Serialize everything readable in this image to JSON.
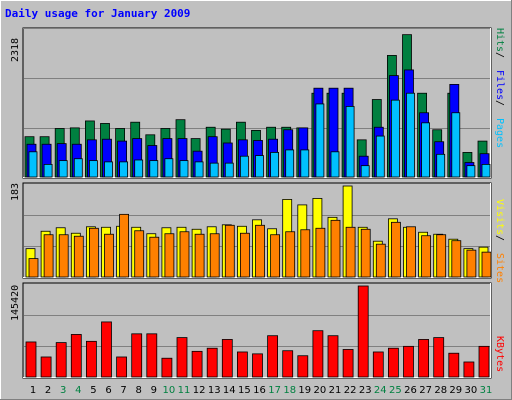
{
  "chart_data": [
    {
      "type": "bar",
      "title": "Daily usage for January 2009",
      "ymax_label": "2318",
      "legend": [
        "Pages",
        "Files",
        "Hits"
      ],
      "colors": {
        "hits": "#008040",
        "files": "#0000ff",
        "pages": "#00c0ff"
      },
      "categories": [
        "1",
        "2",
        "3",
        "4",
        "5",
        "6",
        "7",
        "8",
        "9",
        "10",
        "11",
        "12",
        "13",
        "14",
        "15",
        "16",
        "17",
        "18",
        "19",
        "20",
        "21",
        "22",
        "23",
        "24",
        "25",
        "26",
        "27",
        "28",
        "29",
        "30",
        "31"
      ],
      "weekend_days": [
        "3",
        "4",
        "10",
        "11",
        "17",
        "18",
        "24",
        "25",
        "31"
      ],
      "ylim": [
        0,
        2318
      ],
      "series": [
        {
          "name": "Hits",
          "values": [
            640,
            640,
            770,
            780,
            890,
            850,
            770,
            870,
            670,
            770,
            910,
            610,
            790,
            760,
            870,
            740,
            790,
            790,
            780,
            1330,
            1330,
            1330,
            590,
            1230,
            1930,
            2260,
            1330,
            750,
            1330,
            390,
            570
          ]
        },
        {
          "name": "Files",
          "values": [
            520,
            520,
            530,
            520,
            590,
            600,
            570,
            610,
            500,
            610,
            610,
            410,
            640,
            540,
            590,
            580,
            600,
            750,
            780,
            1410,
            1410,
            1410,
            330,
            790,
            1610,
            1700,
            1020,
            560,
            1470,
            230,
            370
          ]
        },
        {
          "name": "Pages",
          "values": [
            400,
            200,
            260,
            290,
            260,
            240,
            240,
            270,
            260,
            290,
            260,
            240,
            220,
            220,
            330,
            340,
            390,
            430,
            430,
            1160,
            400,
            1120,
            180,
            650,
            1220,
            1330,
            860,
            360,
            1020,
            180,
            200
          ]
        }
      ]
    },
    {
      "type": "bar",
      "ymax_label": "183",
      "legend": [
        "Sites",
        "Visits"
      ],
      "colors": {
        "visits": "#ffff00",
        "sites": "#ff8000"
      },
      "categories": [
        "1",
        "2",
        "3",
        "4",
        "5",
        "6",
        "7",
        "8",
        "9",
        "10",
        "11",
        "12",
        "13",
        "14",
        "15",
        "16",
        "17",
        "18",
        "19",
        "20",
        "21",
        "22",
        "23",
        "24",
        "25",
        "26",
        "27",
        "28",
        "29",
        "30",
        "31"
      ],
      "ylim": [
        0,
        183
      ],
      "series": [
        {
          "name": "Visits",
          "values": [
            57,
            92,
            99,
            88,
            101,
            100,
            102,
            100,
            87,
            99,
            100,
            96,
            101,
            105,
            102,
            115,
            97,
            156,
            145,
            158,
            120,
            183,
            100,
            72,
            117,
            100,
            90,
            86,
            76,
            57,
            60
          ]
        },
        {
          "name": "Sites",
          "values": [
            37,
            85,
            85,
            82,
            98,
            86,
            126,
            93,
            80,
            87,
            91,
            86,
            87,
            104,
            88,
            104,
            85,
            91,
            95,
            98,
            114,
            100,
            96,
            66,
            110,
            101,
            83,
            85,
            73,
            54,
            50
          ]
        }
      ]
    },
    {
      "type": "bar",
      "ymax_label": "145420",
      "legend": [
        "KBytes"
      ],
      "colors": {
        "kbytes": "#ff0000"
      },
      "categories": [
        "1",
        "2",
        "3",
        "4",
        "5",
        "6",
        "7",
        "8",
        "9",
        "10",
        "11",
        "12",
        "13",
        "14",
        "15",
        "16",
        "17",
        "18",
        "19",
        "20",
        "21",
        "22",
        "23",
        "24",
        "25",
        "26",
        "27",
        "28",
        "29",
        "30",
        "31"
      ],
      "ylim": [
        0,
        145420
      ],
      "series": [
        {
          "name": "KBytes",
          "values": [
            56000,
            32000,
            55000,
            68000,
            57000,
            88000,
            32000,
            69000,
            69000,
            30000,
            63000,
            41000,
            46000,
            60000,
            40000,
            37000,
            66000,
            42000,
            34000,
            74000,
            66000,
            44000,
            145420,
            40000,
            46000,
            49000,
            60000,
            63000,
            38000,
            24000,
            49000
          ]
        }
      ]
    }
  ]
}
